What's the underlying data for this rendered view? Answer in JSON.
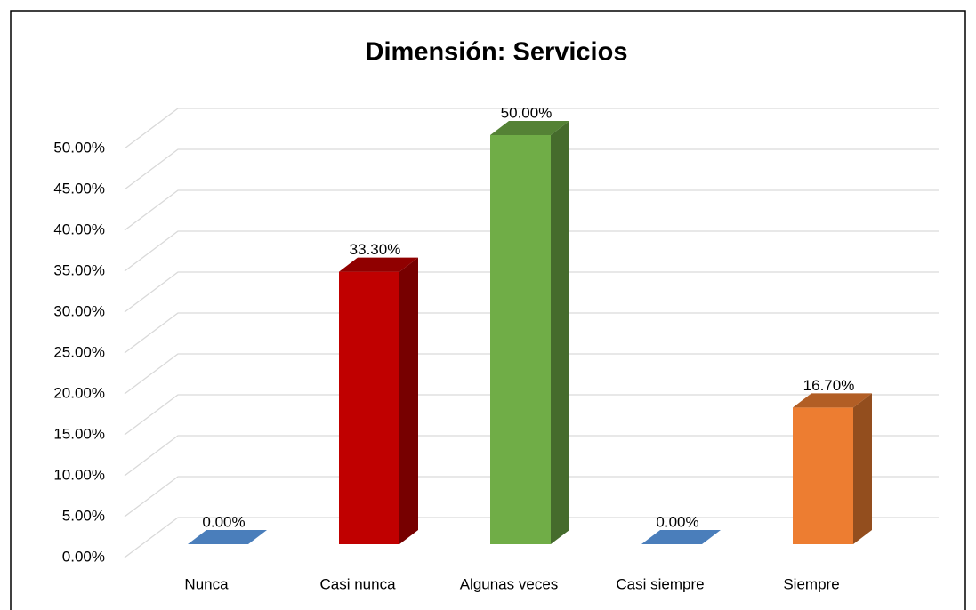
{
  "chart_data": {
    "type": "bar3d",
    "title": "Dimensión: Servicios",
    "categories": [
      "Nunca",
      "Casi nunca",
      "Algunas veces",
      "Casi siempre",
      "Siempre"
    ],
    "values": [
      0,
      33.3,
      50,
      0,
      16.7
    ],
    "value_labels": [
      "0.00%",
      "33.30%",
      "50.00%",
      "0.00%",
      "16.70%"
    ],
    "colors": [
      "#4a7ebb",
      "#c00000",
      "#70ad47",
      "#4a7ebb",
      "#ed7d31"
    ],
    "ylim": [
      0,
      50
    ],
    "yticks": [
      {
        "value": 0,
        "label": "0.00%"
      },
      {
        "value": 5,
        "label": "5.00%"
      },
      {
        "value": 10,
        "label": "10.00%"
      },
      {
        "value": 15,
        "label": "15.00%"
      },
      {
        "value": 20,
        "label": "20.00%"
      },
      {
        "value": 25,
        "label": "25.00%"
      },
      {
        "value": 30,
        "label": "30.00%"
      },
      {
        "value": 35,
        "label": "35.00%"
      },
      {
        "value": 40,
        "label": "40.00%"
      },
      {
        "value": 45,
        "label": "45.00%"
      },
      {
        "value": 50,
        "label": "50.00%"
      }
    ],
    "grid": true
  }
}
